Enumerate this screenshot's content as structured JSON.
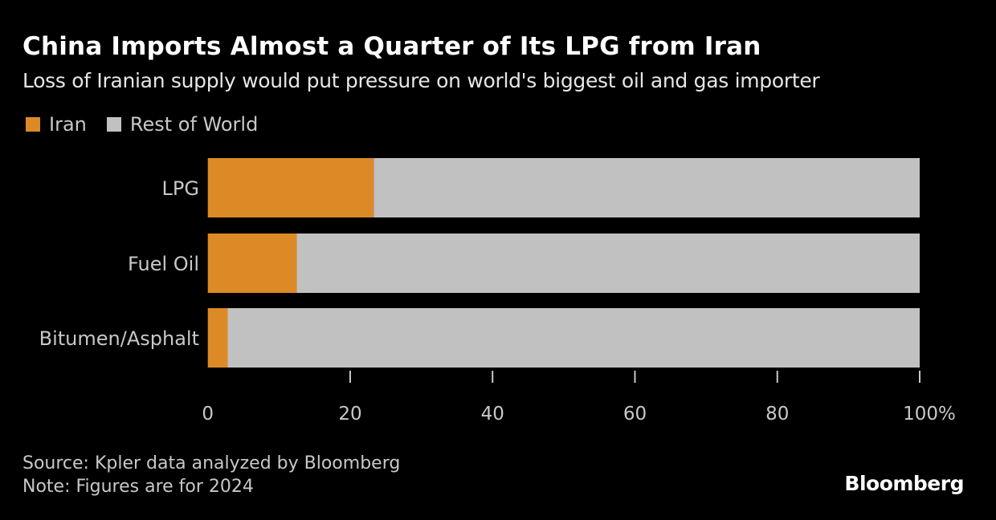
{
  "header": {
    "title": "China Imports Almost a Quarter of Its LPG from Iran",
    "subtitle": "Loss of Iranian supply would put pressure on world's biggest oil and gas importer"
  },
  "legend": [
    {
      "label": "Iran",
      "color": "#dc8a26"
    },
    {
      "label": "Rest of World",
      "color": "#c1c1c1"
    }
  ],
  "chart_data": {
    "type": "bar",
    "orientation": "horizontal",
    "stacked": true,
    "title": "China Imports Almost a Quarter of Its LPG from Iran",
    "subtitle": "Loss of Iranian supply would put pressure on world's biggest oil and gas importer",
    "categories": [
      "LPG",
      "Fuel Oil",
      "Bitumen/Asphalt"
    ],
    "series": [
      {
        "name": "Iran",
        "color": "#dc8a26",
        "values": [
          23.3,
          12.5,
          2.8
        ]
      },
      {
        "name": "Rest of World",
        "color": "#c1c1c1",
        "values": [
          76.7,
          87.5,
          97.2
        ]
      }
    ],
    "xlabel": "",
    "ylabel": "",
    "xlim": [
      0,
      100
    ],
    "xticks": [
      0,
      20,
      40,
      60,
      80,
      100
    ],
    "xtick_labels": [
      "0",
      "20",
      "40",
      "60",
      "80",
      "100%"
    ],
    "grid": false,
    "legend_position": "top-left"
  },
  "footer": {
    "source": "Source: Kpler data analyzed by Bloomberg",
    "note": "Note: Figures are for 2024",
    "brand": "Bloomberg"
  }
}
